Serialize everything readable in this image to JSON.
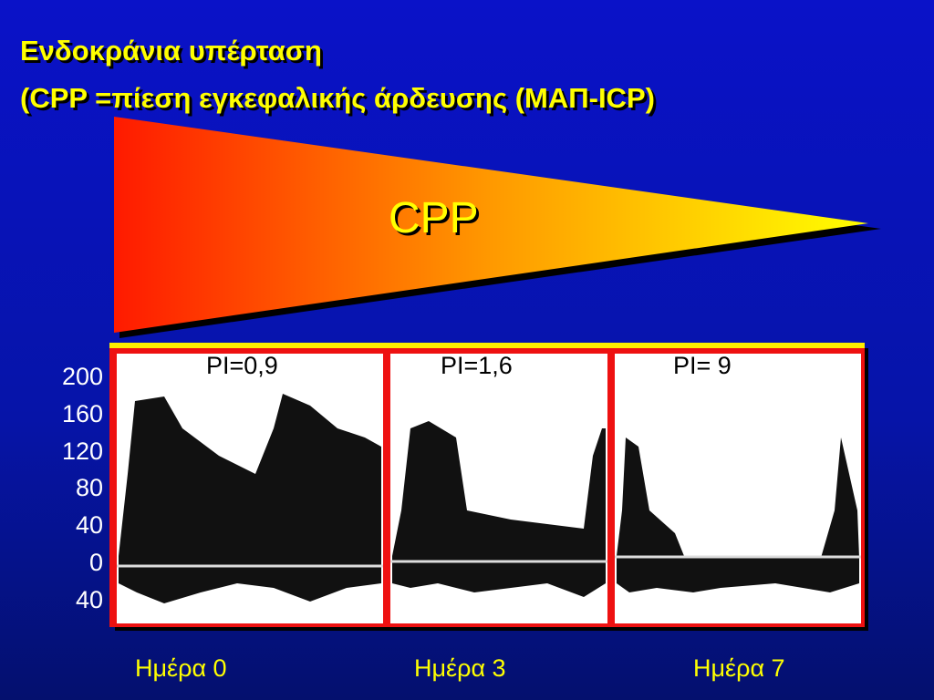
{
  "title": {
    "line1": "Ενδοκράνια υπέρταση",
    "line2": "(CPP =πίεση εγκεφαλικής άρδευσης (ΜΑΠ-ICP)"
  },
  "diagram": {
    "label": "CPP"
  },
  "y_axis_labels": [
    "200",
    "160",
    "120",
    "80",
    "40",
    "0",
    "40"
  ],
  "panels": [
    {
      "pi": "PI=0,9",
      "day": "Ημέρα 0"
    },
    {
      "pi": "PI=1,6",
      "day": "Ημέρα 3"
    },
    {
      "pi": "PI= 9",
      "day": "Ημέρα 7"
    }
  ]
}
